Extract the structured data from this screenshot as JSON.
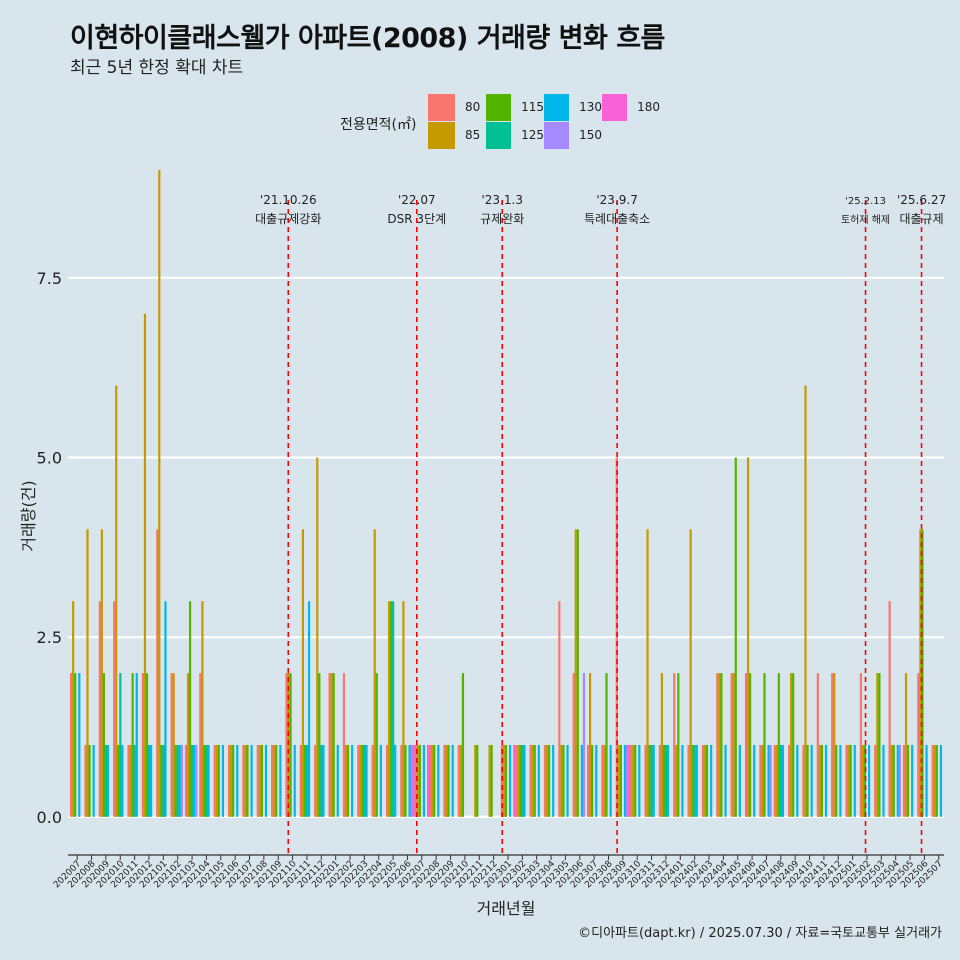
{
  "title": "이현하이클래스웰가 아파트(2008) 거래량 변화 흐름",
  "subtitle": "최근 5년 한정 확대 차트",
  "legend_title": "전용면적(㎡)",
  "caption": "©디아파트(dapt.kr) / 2025.07.30 / 자료=국토교통부 실거래가",
  "colors": {
    "80": "#f8766d",
    "85": "#c49a00",
    "115": "#53b400",
    "125": "#00c094",
    "130": "#00b6eb",
    "150": "#a58aff",
    "180": "#fb61d7",
    "background": "#d9e5ec",
    "gridline": "#ffffff",
    "event_line": "#ff0000"
  },
  "chart_data": {
    "type": "bar",
    "xlabel": "거래년월",
    "ylabel": "거래량(건)",
    "ylim": [
      -0.35,
      9.0
    ],
    "yticks": [
      0.0,
      2.5,
      5.0,
      7.5
    ],
    "ytick_labels": [
      "0.0",
      "2.5",
      "5.0",
      "7.5"
    ],
    "legend_position": "top",
    "grid": true,
    "categories": [
      "202007",
      "202008",
      "202009",
      "202010",
      "202011",
      "202012",
      "202101",
      "202102",
      "202103",
      "202104",
      "202105",
      "202106",
      "202107",
      "202108",
      "202109",
      "202110",
      "202111",
      "202112",
      "202201",
      "202202",
      "202203",
      "202204",
      "202205",
      "202206",
      "202207",
      "202208",
      "202209",
      "202210",
      "202211",
      "202212",
      "202301",
      "202302",
      "202303",
      "202304",
      "202305",
      "202306",
      "202307",
      "202308",
      "202309",
      "202310",
      "202311",
      "202312",
      "202401",
      "202402",
      "202403",
      "202404",
      "202405",
      "202406",
      "202407",
      "202408",
      "202409",
      "202410",
      "202411",
      "202412",
      "202501",
      "202502",
      "202503",
      "202504",
      "202505",
      "202506",
      "202507"
    ],
    "series_keys": [
      "80",
      "85",
      "115",
      "125",
      "130",
      "150",
      "180"
    ],
    "series": [
      {
        "name": "80",
        "values": [
          2,
          1,
          3,
          3,
          1,
          2,
          4,
          2,
          1,
          2,
          1,
          1,
          1,
          1,
          1,
          2,
          1,
          1,
          2,
          2,
          1,
          1,
          1,
          1,
          1,
          1,
          1,
          1,
          0,
          0,
          1,
          1,
          1,
          1,
          3,
          2,
          1,
          1,
          5,
          1,
          1,
          1,
          2,
          1,
          1,
          2,
          2,
          2,
          1,
          1,
          1,
          1,
          2,
          2,
          1,
          2,
          1,
          3,
          1,
          2,
          1
        ]
      },
      {
        "name": "85",
        "values": [
          3,
          4,
          4,
          6,
          1,
          7,
          9,
          2,
          2,
          3,
          1,
          1,
          1,
          1,
          1,
          2,
          4,
          5,
          2,
          1,
          1,
          4,
          3,
          3,
          1,
          1,
          1,
          1,
          1,
          1,
          1,
          1,
          1,
          1,
          1,
          4,
          2,
          1,
          1,
          1,
          4,
          2,
          1,
          4,
          1,
          2,
          2,
          5,
          1,
          1,
          2,
          6,
          1,
          2,
          1,
          1,
          2,
          1,
          2,
          4,
          1
        ]
      },
      {
        "name": "115",
        "values": [
          2,
          1,
          2,
          1,
          2,
          2,
          1,
          1,
          3,
          1,
          1,
          1,
          1,
          1,
          1,
          2,
          1,
          2,
          2,
          1,
          1,
          2,
          3,
          1,
          1,
          1,
          1,
          2,
          1,
          1,
          1,
          1,
          1,
          1,
          1,
          4,
          1,
          2,
          1,
          1,
          1,
          1,
          2,
          1,
          1,
          2,
          5,
          2,
          2,
          2,
          2,
          1,
          1,
          1,
          1,
          1,
          2,
          1,
          1,
          4,
          1
        ]
      },
      {
        "name": "125",
        "values": [
          0,
          0,
          1,
          2,
          1,
          1,
          1,
          1,
          1,
          1,
          0,
          0,
          0,
          0,
          0,
          0,
          1,
          1,
          0,
          0,
          1,
          0,
          3,
          0,
          0,
          0,
          0,
          0,
          0,
          0,
          0,
          1,
          0,
          0,
          0,
          0,
          0,
          0,
          0,
          0,
          1,
          1,
          0,
          1,
          0,
          0,
          0,
          0,
          0,
          1,
          0,
          0,
          0,
          0,
          0,
          0,
          0,
          0,
          0,
          0,
          0
        ]
      },
      {
        "name": "130",
        "values": [
          2,
          1,
          1,
          1,
          2,
          1,
          3,
          1,
          1,
          1,
          1,
          1,
          1,
          1,
          1,
          1,
          3,
          1,
          1,
          1,
          1,
          1,
          1,
          1,
          1,
          1,
          1,
          0,
          0,
          0,
          1,
          1,
          1,
          1,
          1,
          1,
          1,
          1,
          1,
          1,
          1,
          1,
          1,
          1,
          1,
          1,
          1,
          1,
          1,
          1,
          1,
          1,
          1,
          1,
          1,
          1,
          1,
          1,
          1,
          1,
          1
        ]
      },
      {
        "name": "150",
        "values": [
          0,
          0,
          0,
          0,
          0,
          0,
          0,
          1,
          1,
          0,
          0,
          0,
          0,
          0,
          0,
          0,
          0,
          0,
          0,
          0,
          0,
          0,
          0,
          1,
          0,
          0,
          0,
          0,
          0,
          0,
          0,
          0,
          0,
          0,
          0,
          2,
          0,
          0,
          1,
          0,
          0,
          0,
          0,
          0,
          0,
          0,
          0,
          0,
          1,
          0,
          0,
          0,
          0,
          0,
          0,
          0,
          0,
          1,
          0,
          0,
          0
        ]
      },
      {
        "name": "180",
        "values": [
          0,
          0,
          0,
          0,
          0,
          0,
          0,
          0,
          0,
          0,
          0,
          0,
          0,
          0,
          0,
          0,
          0,
          0,
          0,
          0,
          0,
          0,
          0,
          1,
          1,
          0,
          0,
          0,
          0,
          0,
          1,
          0,
          0,
          0,
          0,
          0,
          0,
          0,
          1,
          0,
          0,
          0,
          0,
          0,
          0,
          0,
          0,
          0,
          0,
          0,
          0,
          0,
          0,
          0,
          0,
          0,
          0,
          0,
          0,
          0,
          0
        ]
      }
    ],
    "events": [
      {
        "date": "'21.10.26",
        "label": "대출규제강화",
        "pos": 15.2
      },
      {
        "date": "'22.07",
        "label": "DSR 3단계",
        "pos": 24.15
      },
      {
        "date": "'23.1.3",
        "label": "규제완화",
        "pos": 30.1
      },
      {
        "date": "'23.9.7",
        "label": "특례대출축소",
        "pos": 38.1
      },
      {
        "date": "'25.2.13",
        "label": "토허제 해제",
        "pos": 55.4
      },
      {
        "date": "'25.6.27",
        "label": "대출규제",
        "pos": 59.3
      }
    ]
  }
}
